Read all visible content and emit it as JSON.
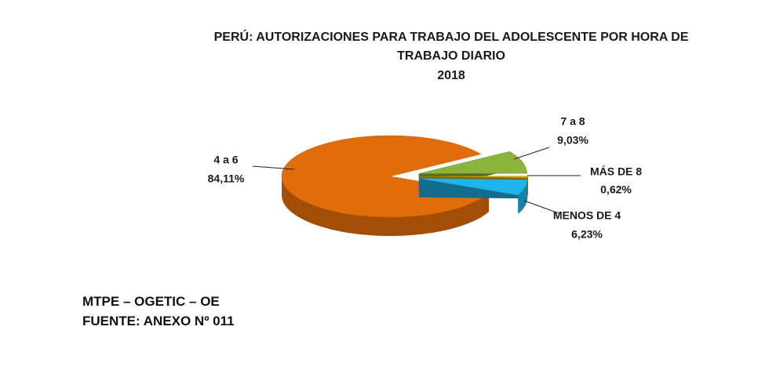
{
  "chart_data": {
    "type": "pie",
    "title": "PERÚ: AUTORIZACIONES PARA TRABAJO DEL ADOLESCENTE POR HORA DE TRABAJO DIARIO",
    "subtitle": "2018",
    "categories": [
      "4 a 6",
      "7 a 8",
      "MÁS DE 8",
      "MENOS DE 4"
    ],
    "values": [
      84.11,
      9.03,
      0.62,
      6.23
    ],
    "value_labels": [
      "84,11%",
      "9,03%",
      "0,62%",
      "6,23%"
    ],
    "colors": [
      "#e36c0a",
      "#8cb43c",
      "#d9a800",
      "#1fb4ea"
    ],
    "annotations": [
      "MTPE – OGETIC – OE",
      "FUENTE: ANEXO Nº 011"
    ]
  }
}
